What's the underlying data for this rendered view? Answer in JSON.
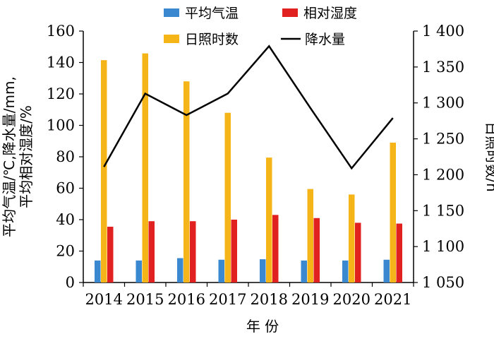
{
  "chart_data": {
    "type": "bar",
    "categories": [
      "2014",
      "2015",
      "2016",
      "2017",
      "2018",
      "2019",
      "2020",
      "2021"
    ],
    "xlabel": "年 份",
    "ylabel_left": [
      "平均气温/℃,降水量/mm,",
      "平均相对湿度/%"
    ],
    "ylabel_right": "日照时数/h",
    "left_axis": {
      "min": 0,
      "max": 160,
      "ticks": [
        "0",
        "20",
        "40",
        "60",
        "80",
        "100",
        "120",
        "140",
        "160"
      ]
    },
    "right_axis": {
      "min": 1050,
      "max": 1400,
      "ticks": [
        "1 050",
        "1 100",
        "1 150",
        "1 200",
        "1 250",
        "1 300",
        "1 350",
        "1 400"
      ]
    },
    "series": [
      {
        "name": "平均气温",
        "type": "bar",
        "axis": "left",
        "color": "#3a88d0",
        "values": [
          14,
          14,
          15.5,
          14.5,
          14.8,
          14,
          14,
          14.5
        ]
      },
      {
        "name": "相对湿度",
        "type": "bar",
        "axis": "left",
        "color": "#e0211f",
        "values": [
          35.5,
          39,
          39,
          40,
          43,
          41,
          38,
          37.5
        ]
      },
      {
        "name": "日照时数",
        "type": "bar",
        "axis": "left",
        "color": "#f5b519",
        "values": [
          141.5,
          145.8,
          128,
          108,
          79.5,
          59.5,
          56,
          89
        ]
      },
      {
        "name": "降水量",
        "type": "line",
        "axis": "right",
        "color": "#000000",
        "values": [
          1211,
          1313,
          1283,
          1313,
          1379,
          1293,
          1209,
          1279
        ]
      }
    ],
    "legend": {
      "placement": "top",
      "row1": [
        "平均气温",
        "相对湿度"
      ],
      "row2": [
        "日照时数",
        "降水量"
      ]
    },
    "grid": false
  }
}
